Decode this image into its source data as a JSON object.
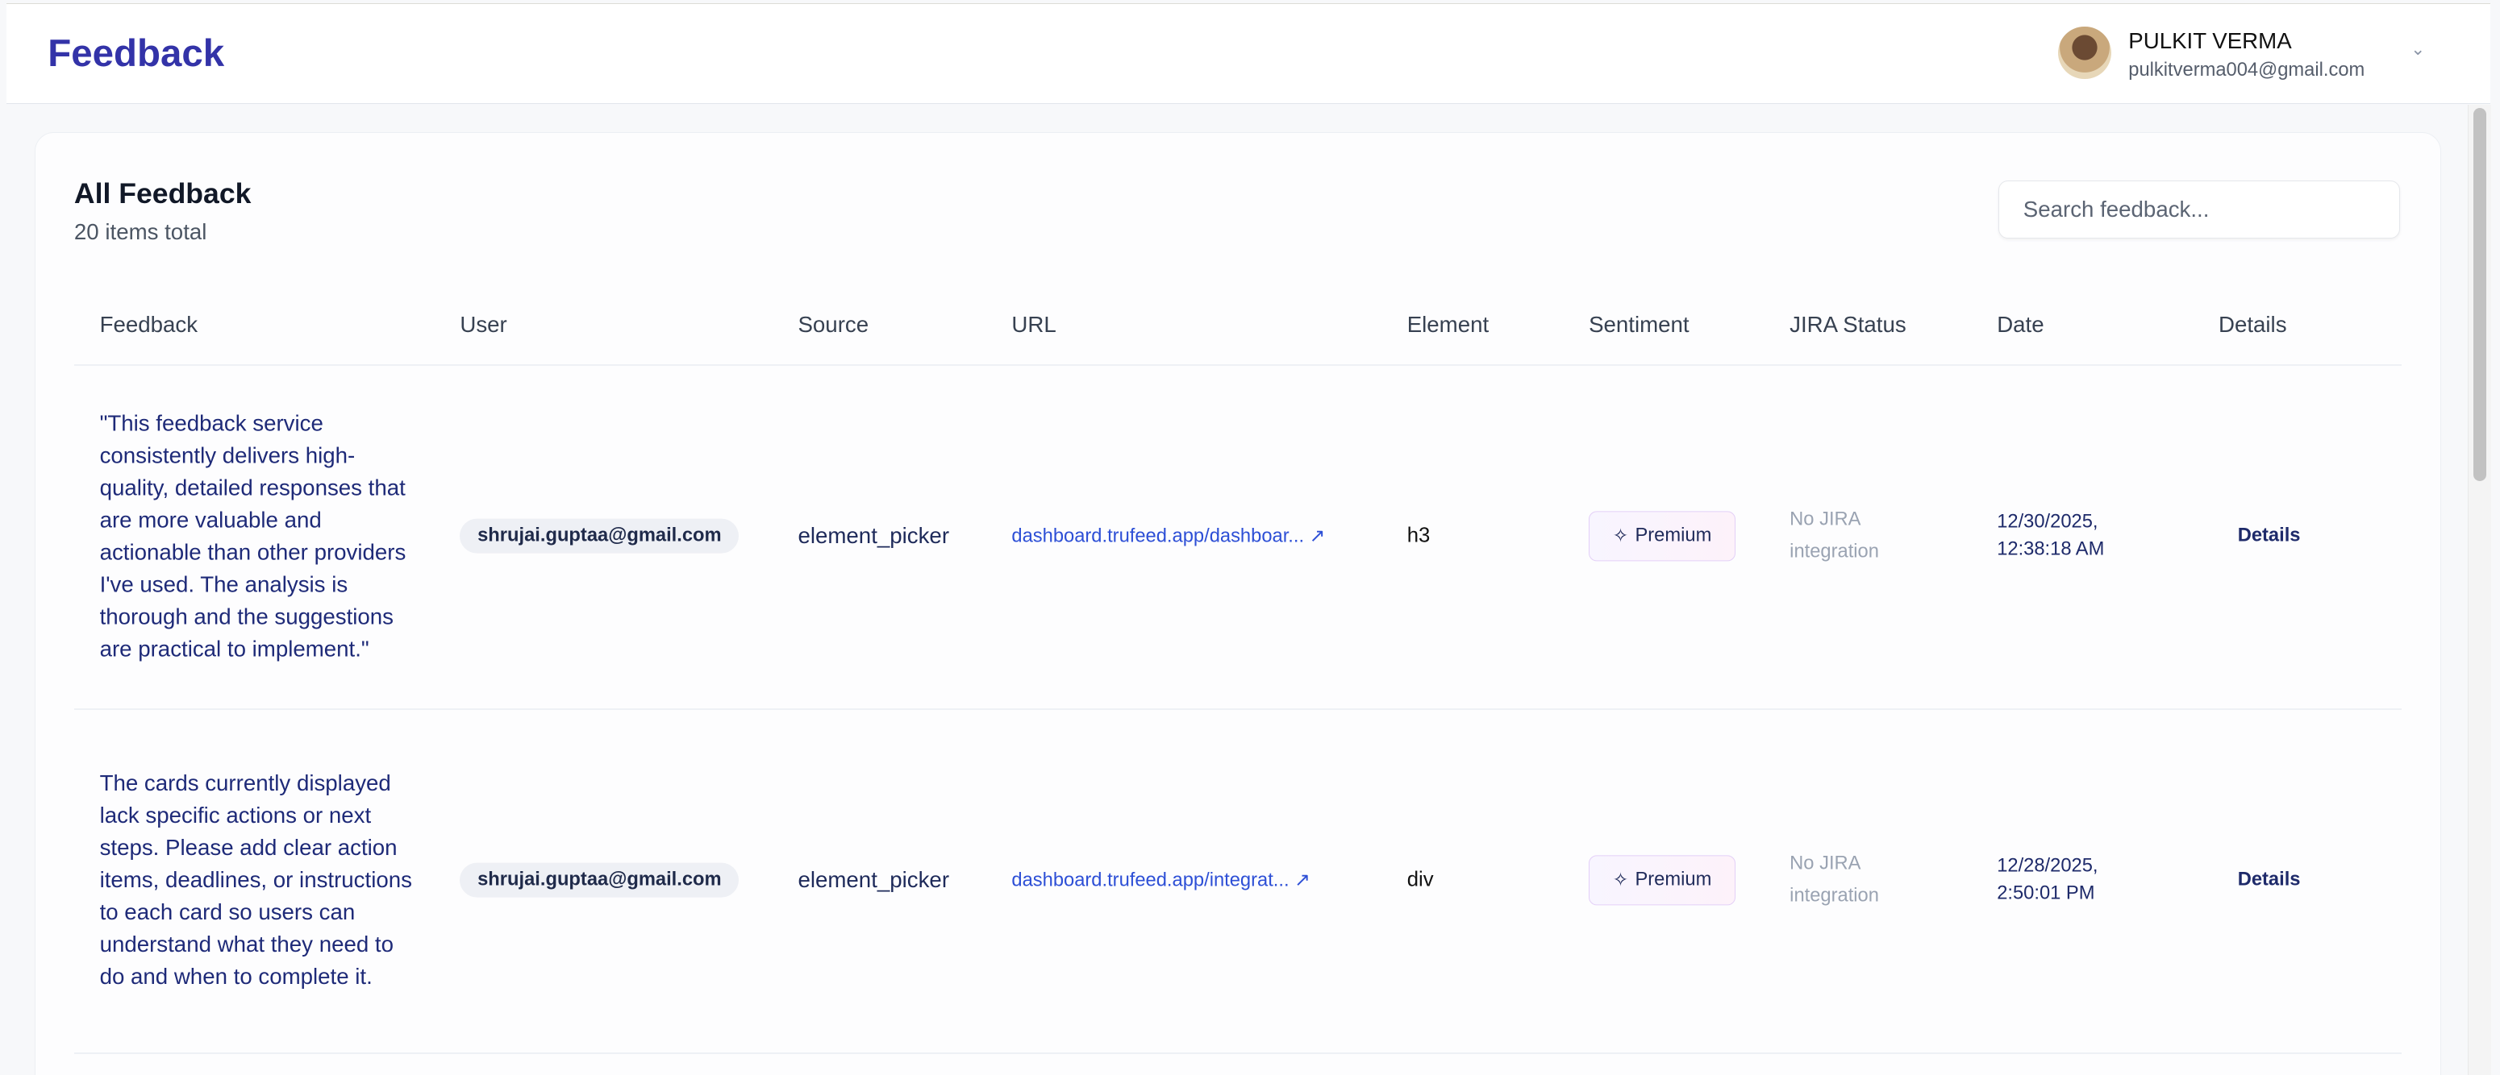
{
  "header": {
    "title": "Feedback",
    "user": {
      "name": "PULKIT VERMA",
      "email": "pulkitverma004@gmail.com"
    }
  },
  "main": {
    "title": "All Feedback",
    "count_text": "20 items total",
    "search": {
      "placeholder": "Search feedback...",
      "value": ""
    },
    "columns": [
      "Feedback",
      "User",
      "Source",
      "URL",
      "Element",
      "Sentiment",
      "JIRA Status",
      "Date",
      "Details"
    ],
    "rows": [
      {
        "feedback": "\"This feedback service consistently delivers high-quality, detailed responses that are more valuable and actionable than other providers I've used. The analysis is thorough and the suggestions are practical to implement.\"",
        "user": "shrujai.guptaa@gmail.com",
        "source": "element_picker",
        "url": "dashboard.trufeed.app/dashboar...",
        "element": "h3",
        "sentiment": "Premium",
        "jira": "No JIRA integration",
        "date": "12/30/2025, 12:38:18 AM",
        "details": "Details"
      },
      {
        "feedback": "The cards currently displayed lack specific actions or next steps. Please add clear action items, deadlines, or instructions to each card so users can understand what they need to do and when to complete it.",
        "user": "shrujai.guptaa@gmail.com",
        "source": "element_picker",
        "url": "dashboard.trufeed.app/integrat...",
        "element": "div",
        "sentiment": "Premium",
        "jira": "No JIRA integration",
        "date": "12/28/2025, 2:50:01 PM",
        "details": "Details"
      }
    ]
  },
  "colors": {
    "brand": "#3333a8",
    "link": "#2d4fd6",
    "premium_border": "#e3cff7"
  },
  "icons": {
    "sentiment": "sparkle-icon",
    "url": "external-link-icon",
    "menu": "chevron-down-icon"
  }
}
